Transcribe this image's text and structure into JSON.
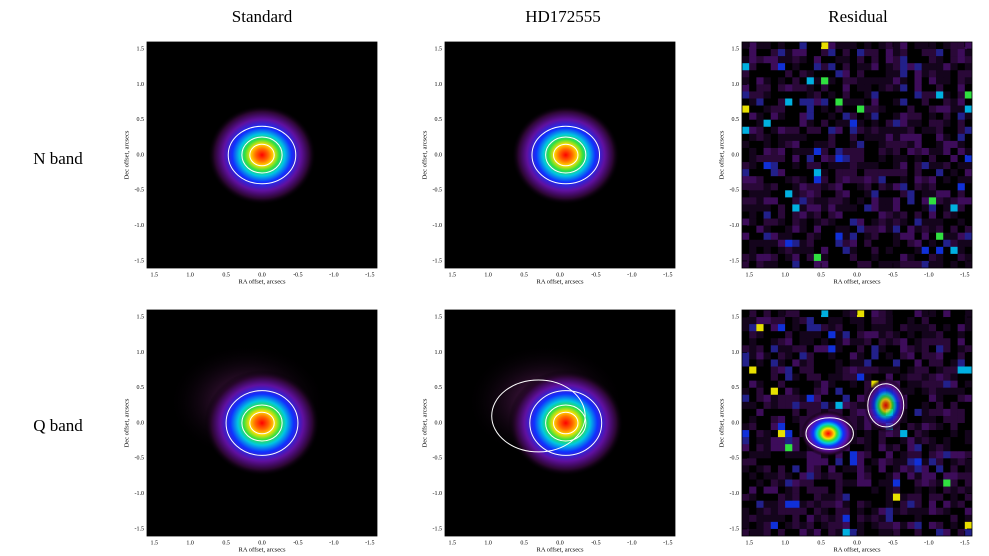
{
  "column_titles": [
    "Standard",
    "HD172555",
    "Residual"
  ],
  "row_labels": [
    "N band",
    "Q band"
  ],
  "chart_data": [
    {
      "type": "image",
      "xlabel": "RA offset, arcsecs",
      "ylabel": "Dec offset, arcsecs",
      "xlim": [
        1.6,
        -1.6
      ],
      "ylim": [
        -1.6,
        1.6
      ],
      "xticks": [
        1.5,
        {
          "value": 1,
          "label": "1.0"
        },
        0.5,
        {
          "value": 0,
          "label": "0.0"
        },
        -0.5,
        {
          "value": -1,
          "label": "-1.0"
        },
        -1.5
      ],
      "yticks": [
        -1.5,
        {
          "value": -1,
          "label": "-1.0"
        },
        -0.5,
        {
          "value": 0,
          "label": "0.0"
        },
        0.5,
        {
          "value": 1,
          "label": "1.0"
        },
        1.5
      ]
    },
    {
      "type": "image",
      "xlabel": "RA offset, arcsecs",
      "ylabel": "Dec offset, arcsecs",
      "xlim": [
        1.6,
        -1.6
      ],
      "ylim": [
        -1.6,
        1.6
      ],
      "xticks": [
        1.5,
        {
          "value": 1,
          "label": "1.0"
        },
        0.5,
        {
          "value": 0,
          "label": "0.0"
        },
        -0.5,
        {
          "value": -1,
          "label": "-1.0"
        },
        -1.5
      ],
      "yticks": [
        -1.5,
        {
          "value": -1,
          "label": "-1.0"
        },
        -0.5,
        {
          "value": 0,
          "label": "0.0"
        },
        0.5,
        {
          "value": 1,
          "label": "1.0"
        },
        1.5
      ]
    },
    {
      "type": "image",
      "xlabel": "RA offset, arcsecs",
      "ylabel": "Dec offset, arcsecs",
      "xlim": [
        1.6,
        -1.6
      ],
      "ylim": [
        -1.6,
        1.6
      ],
      "xticks": [
        1.5,
        {
          "value": 1,
          "label": "1.0"
        },
        0.5,
        {
          "value": 0,
          "label": "0.0"
        },
        -0.5,
        {
          "value": -1,
          "label": "-1.0"
        },
        -1.5
      ],
      "yticks": [
        -1.5,
        {
          "value": -1,
          "label": "-1.0"
        },
        -0.5,
        {
          "value": 0,
          "label": "0.0"
        },
        0.5,
        {
          "value": 1,
          "label": "1.0"
        },
        1.5
      ]
    },
    {
      "type": "image",
      "xlabel": "RA offset, arcsecs",
      "ylabel": "Dec offset, arcsecs",
      "xlim": [
        1.6,
        -1.6
      ],
      "ylim": [
        -1.6,
        1.6
      ],
      "xticks": [
        1.5,
        {
          "value": 1,
          "label": "1.0"
        },
        0.5,
        {
          "value": 0,
          "label": "0.0"
        },
        -0.5,
        {
          "value": -1,
          "label": "-1.0"
        },
        -1.5
      ],
      "yticks": [
        -1.5,
        {
          "value": -1,
          "label": "-1.0"
        },
        -0.5,
        {
          "value": 0,
          "label": "0.0"
        },
        0.5,
        {
          "value": 1,
          "label": "1.0"
        },
        1.5
      ]
    },
    {
      "type": "image",
      "xlabel": "RA offset, arcsecs",
      "ylabel": "Dec offset, arcsecs",
      "xlim": [
        1.6,
        -1.6
      ],
      "ylim": [
        -1.6,
        1.6
      ],
      "xticks": [
        1.5,
        {
          "value": 1,
          "label": "1.0"
        },
        0.5,
        {
          "value": 0,
          "label": "0.0"
        },
        -0.5,
        {
          "value": -1,
          "label": "-1.0"
        },
        -1.5
      ],
      "yticks": [
        -1.5,
        {
          "value": -1,
          "label": "-1.0"
        },
        -0.5,
        {
          "value": 0,
          "label": "0.0"
        },
        0.5,
        {
          "value": 1,
          "label": "1.0"
        },
        1.5
      ]
    },
    {
      "type": "image",
      "xlabel": "RA offset, arcsecs",
      "ylabel": "Dec offset, arcsecs",
      "xlim": [
        1.6,
        -1.6
      ],
      "ylim": [
        -1.6,
        1.6
      ],
      "xticks": [
        1.5,
        {
          "value": 1,
          "label": "1.0"
        },
        0.5,
        {
          "value": 0,
          "label": "0.0"
        },
        -0.5,
        {
          "value": -1,
          "label": "-1.0"
        },
        -1.5
      ],
      "yticks": [
        -1.5,
        {
          "value": -1,
          "label": "-1.0"
        },
        -0.5,
        {
          "value": 0,
          "label": "0.0"
        },
        0.5,
        {
          "value": 1,
          "label": "1.0"
        },
        1.5
      ]
    }
  ]
}
